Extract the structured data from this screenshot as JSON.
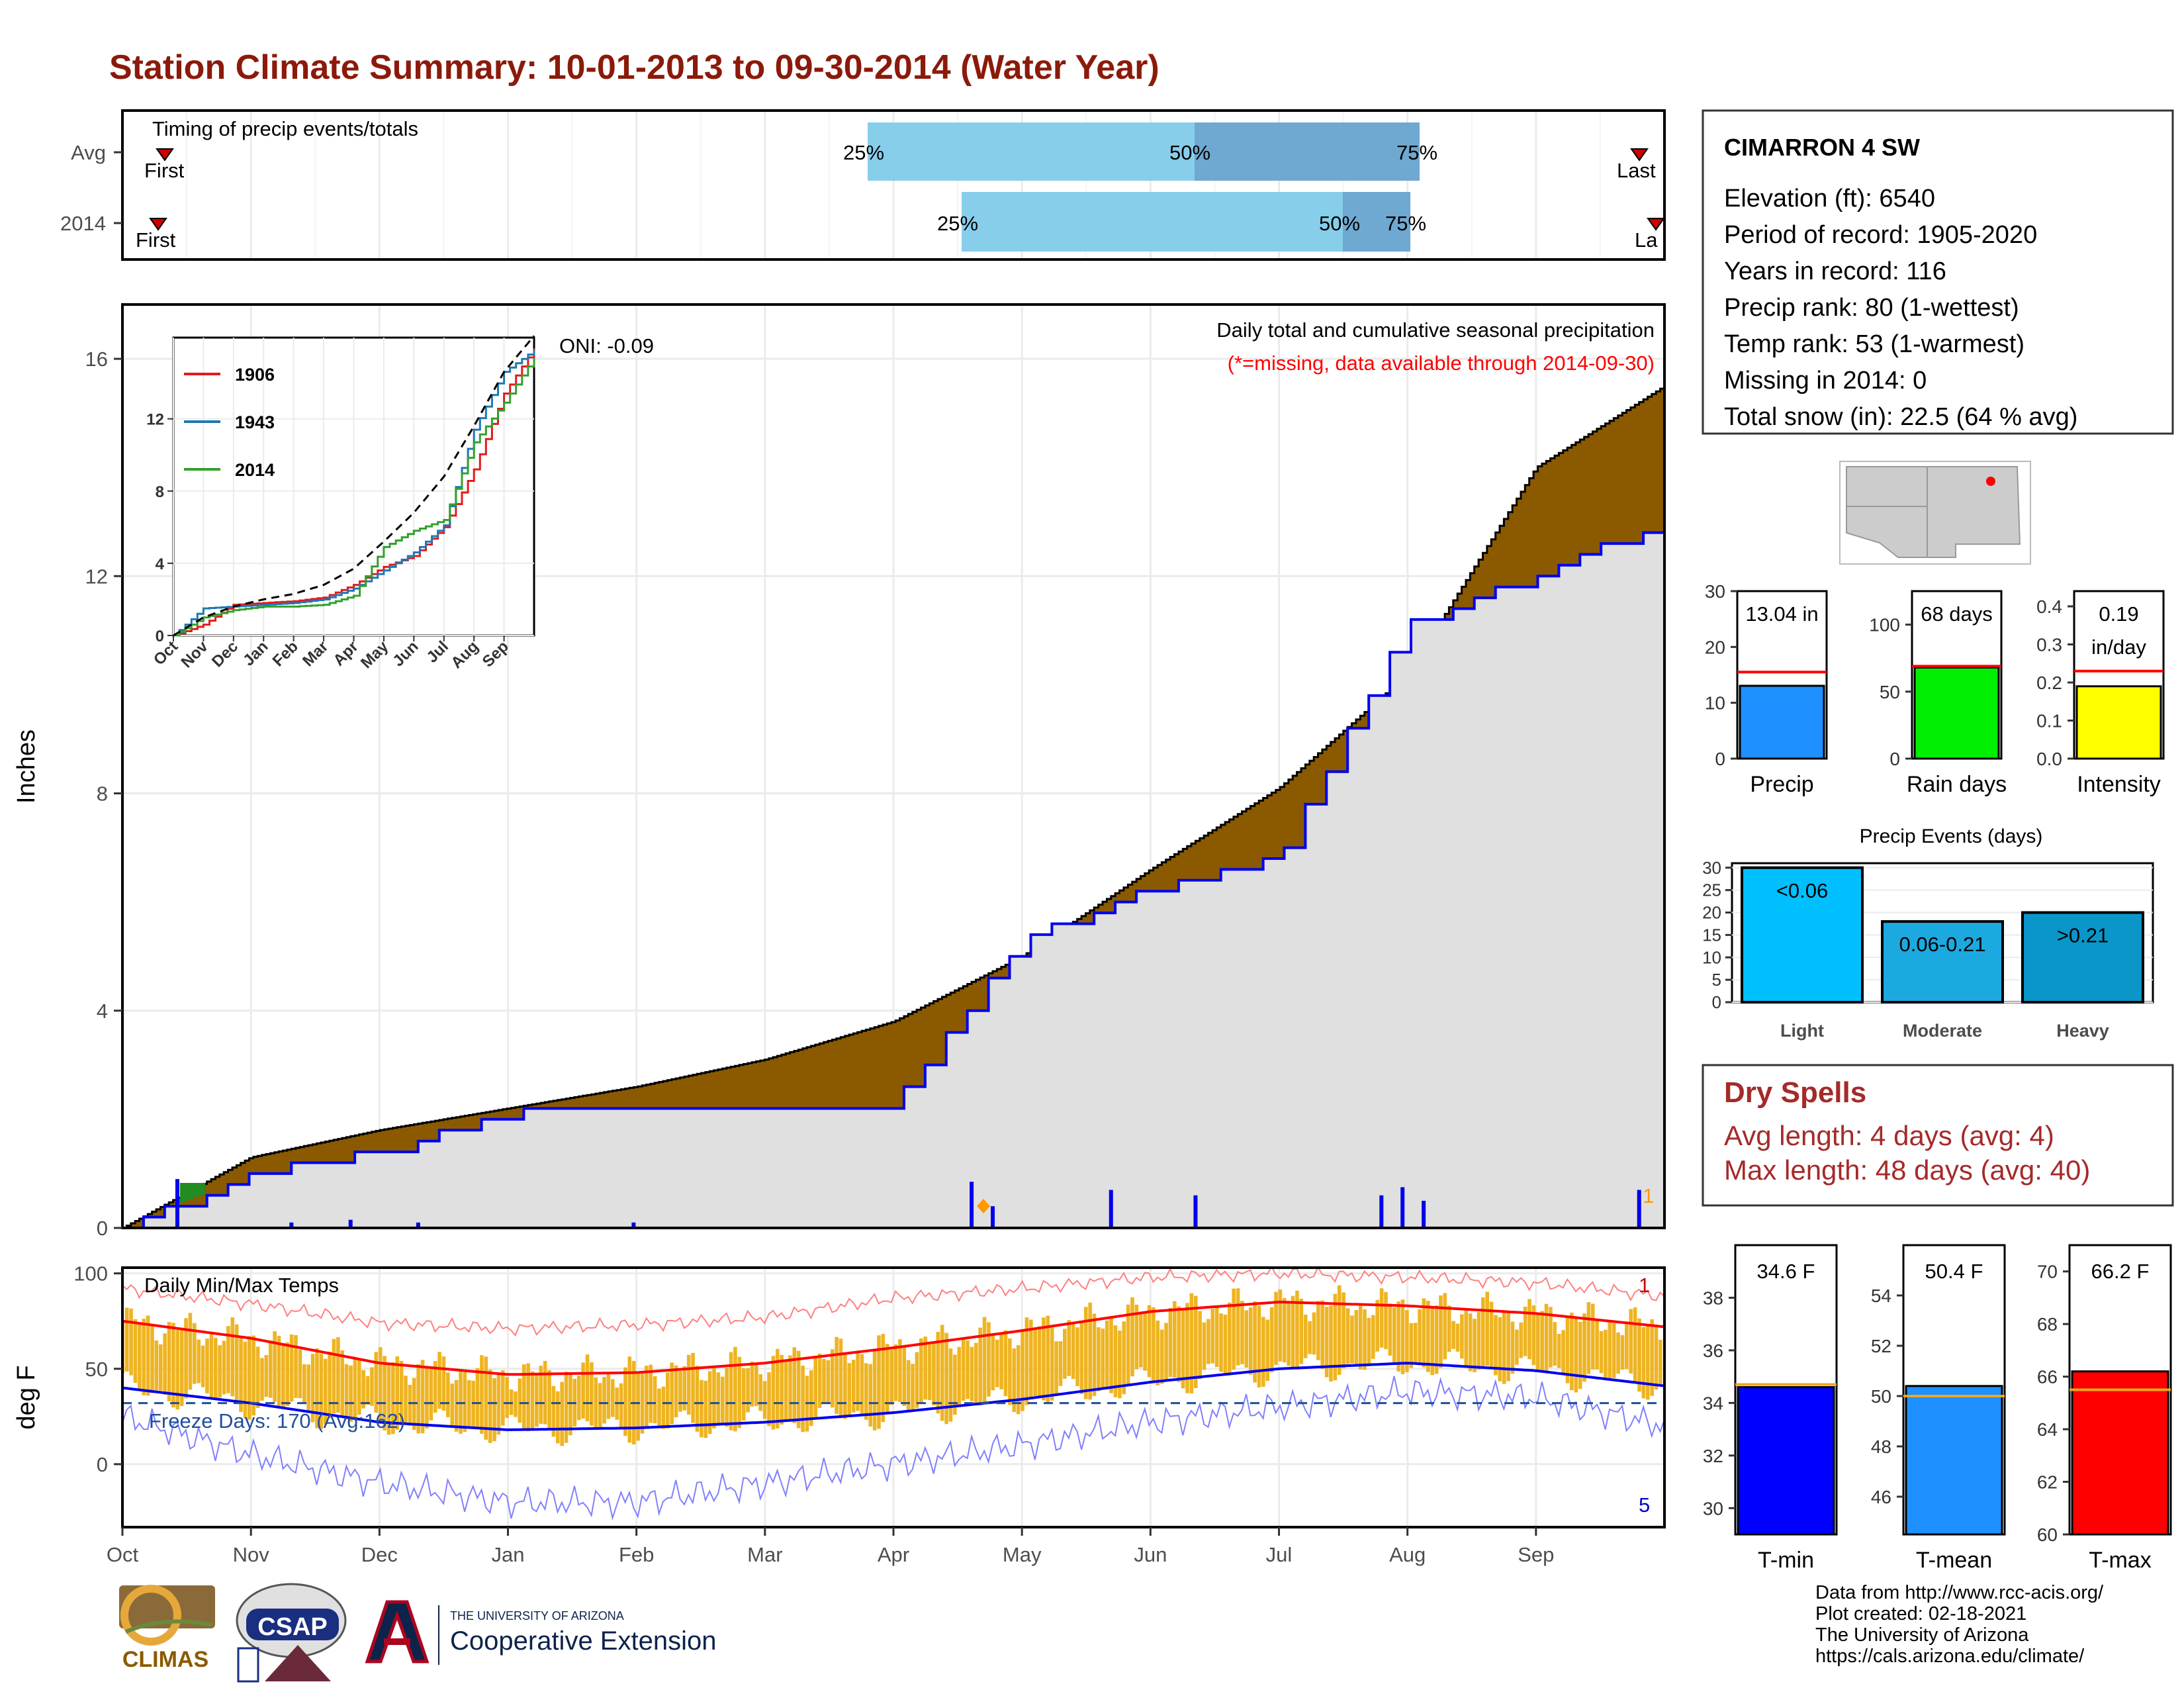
{
  "title": "Station Climate Summary: 10-01-2013 to 09-30-2014 (Water Year)",
  "timing": {
    "label": "Timing of precip events/totals",
    "rows": [
      {
        "name": "Avg",
        "first_label": "First",
        "last_label": "Last",
        "p25": "25%",
        "p50": "50%",
        "p75": "75%"
      },
      {
        "name": "2014",
        "first_label": "First",
        "last_label": "La",
        "p25": "25%",
        "p50": "50%",
        "p75": "75%"
      }
    ]
  },
  "main_panel": {
    "ylabel": "Inches",
    "yticks": [
      "0",
      "4",
      "8",
      "12",
      "16"
    ],
    "note1": "Daily total and cumulative seasonal precipitation",
    "note2": "(*=missing, data available through 2014-09-30)",
    "oni": "ONI: -0.09",
    "count_label": "1"
  },
  "inset": {
    "yticks": [
      "0",
      "4",
      "8",
      "12"
    ],
    "xticks": [
      "Oct",
      "Nov",
      "Dec",
      "Jan",
      "Feb",
      "Mar",
      "Apr",
      "May",
      "Jun",
      "Jul",
      "Aug",
      "Sep"
    ],
    "legend": [
      "1906",
      "1943",
      "2014"
    ]
  },
  "temp_panel": {
    "ylabel": "deg F",
    "label": "Daily Min/Max Temps",
    "freeze": "Freeze Days: 170 (Avg:162)",
    "yticks": [
      "0",
      "50",
      "100"
    ],
    "count_top": "1",
    "count_bottom": "5"
  },
  "months": [
    "Oct",
    "Nov",
    "Dec",
    "Jan",
    "Feb",
    "Mar",
    "Apr",
    "May",
    "Jun",
    "Jul",
    "Aug",
    "Sep"
  ],
  "station": {
    "name": "CIMARRON 4 SW",
    "lines": [
      "Elevation (ft): 6540",
      "Period of record: 1905-2020",
      "Years in record: 116",
      "Precip rank: 80 (1-wettest)",
      "Temp rank: 53 (1-warmest)",
      "Missing in 2014: 0",
      "Total snow (in): 22.5 (64 % avg)"
    ]
  },
  "mini_bars": [
    {
      "label": "Precip",
      "value_text": "13.04 in",
      "value": 13.04,
      "avg": 15.5,
      "ymax": 30,
      "ticks": [
        "0",
        "10",
        "20",
        "30"
      ],
      "color": "#1e90ff"
    },
    {
      "label": "Rain days",
      "value_text": "68 days",
      "value": 68,
      "avg": 69,
      "ymax": 125,
      "ticks": [
        "0",
        "50",
        "100"
      ],
      "color": "#00ee00"
    },
    {
      "label": "Intensity",
      "value_text": "0.19 in/day",
      "value": 0.19,
      "avg": 0.23,
      "ymax": 0.44,
      "ticks": [
        "0.0",
        "0.1",
        "0.2",
        "0.3",
        "0.4"
      ],
      "color": "#ffff00"
    }
  ],
  "precip_events": {
    "title": "Precip Events (days)",
    "ticks": [
      "0",
      "5",
      "10",
      "15",
      "20",
      "25",
      "30"
    ],
    "categories": [
      "Light",
      "Moderate",
      "Heavy"
    ],
    "labels": [
      "<0.06",
      "0.06-0.21",
      ">0.21"
    ],
    "values": [
      30,
      18,
      20
    ],
    "colors": [
      "#00bfff",
      "#1ca9e0",
      "#0a96c8"
    ]
  },
  "dry_spells": {
    "title": "Dry Spells",
    "avg": "Avg length: 4 days (avg: 4)",
    "max": "Max length: 48 days (avg: 40)"
  },
  "temp_bars": [
    {
      "label": "T-min",
      "value_text": "34.6 F",
      "value": 34.6,
      "avg": 34.7,
      "ymin": 29,
      "ymax": 40,
      "ticks": [
        "30",
        "32",
        "34",
        "36",
        "38"
      ],
      "color": "#0000ff"
    },
    {
      "label": "T-mean",
      "value_text": "50.4 F",
      "value": 50.4,
      "avg": 50.0,
      "ymin": 44.5,
      "ymax": 56,
      "ticks": [
        "46",
        "48",
        "50",
        "52",
        "54"
      ],
      "color": "#1e90ff"
    },
    {
      "label": "T-max",
      "value_text": "66.2 F",
      "value": 66.2,
      "avg": 65.5,
      "ymin": 60,
      "ymax": 71,
      "ticks": [
        "60",
        "62",
        "64",
        "66",
        "68",
        "70"
      ],
      "color": "#ff0000"
    }
  ],
  "footer": [
    "Data from http://www.rcc-acis.org/",
    "Plot created: 02-18-2021",
    "The University of Arizona",
    "https://cals.arizona.edu/climate/"
  ],
  "logos": {
    "climas": "CLIMAS",
    "csap": "CSAP",
    "ua_small": "THE UNIVERSITY OF ARIZONA",
    "ua_big": "Cooperative Extension"
  },
  "chart_data": [
    {
      "type": "area",
      "name": "cumulative-precip",
      "x_unit": "month",
      "x": [
        "Oct",
        "Nov",
        "Dec",
        "Jan",
        "Feb",
        "Mar",
        "Apr",
        "May",
        "Jun",
        "Jul",
        "Aug",
        "Sep",
        "Sep-end"
      ],
      "series": [
        {
          "name": "Avg cumulative",
          "values": [
            0,
            1.3,
            1.8,
            2.2,
            2.6,
            3.1,
            3.8,
            5.0,
            6.6,
            8.1,
            10.2,
            14.0,
            15.5
          ]
        },
        {
          "name": "2014 cumulative",
          "values": [
            0,
            1.0,
            1.4,
            2.1,
            2.2,
            2.2,
            2.3,
            5.3,
            6.2,
            6.9,
            11.1,
            12.0,
            13.04
          ]
        }
      ],
      "ylim": [
        0,
        17
      ],
      "ylabel": "Inches",
      "daily_precip": [
        {
          "date": "2013-10-14",
          "value": 0.9
        },
        {
          "date": "2013-11-10",
          "value": 0.1
        },
        {
          "date": "2013-11-24",
          "value": 0.15
        },
        {
          "date": "2013-12-10",
          "value": 0.1
        },
        {
          "date": "2014-01-30",
          "value": 0.1
        },
        {
          "date": "2014-04-20",
          "value": 0.85
        },
        {
          "date": "2014-04-25",
          "value": 0.4
        },
        {
          "date": "2014-05-23",
          "value": 0.7
        },
        {
          "date": "2014-06-12",
          "value": 0.6
        },
        {
          "date": "2014-07-26",
          "value": 0.6
        },
        {
          "date": "2014-07-31",
          "value": 0.75
        },
        {
          "date": "2014-08-05",
          "value": 0.5
        },
        {
          "date": "2014-09-25",
          "value": 0.7
        }
      ]
    },
    {
      "type": "line",
      "name": "inset-cumulative-years",
      "categories": [
        "Oct",
        "Nov",
        "Dec",
        "Jan",
        "Feb",
        "Mar",
        "Apr",
        "May",
        "Jun",
        "Jul",
        "Aug",
        "Sep",
        "Sep-end"
      ],
      "series": [
        {
          "name": "1906",
          "values": [
            0,
            0.6,
            1.7,
            1.8,
            1.9,
            2.1,
            2.8,
            3.8,
            4.4,
            6.0,
            9.2,
            13.4,
            15.9
          ]
        },
        {
          "name": "1943",
          "values": [
            0,
            1.5,
            1.6,
            1.7,
            1.8,
            2.0,
            2.6,
            3.6,
            4.6,
            6.1,
            11.4,
            14.6,
            15.8
          ]
        },
        {
          "name": "2014",
          "values": [
            0,
            1.0,
            1.4,
            1.6,
            1.6,
            1.7,
            2.2,
            4.9,
            5.8,
            6.4,
            10.7,
            12.9,
            15.4
          ]
        },
        {
          "name": "avg",
          "values": [
            0,
            1.0,
            1.6,
            2.0,
            2.3,
            2.8,
            3.7,
            5.2,
            6.8,
            8.8,
            11.6,
            14.6,
            16.6
          ]
        }
      ],
      "ylim": [
        0,
        16.5
      ]
    },
    {
      "type": "line",
      "name": "daily-temps",
      "categories": [
        "Oct",
        "Nov",
        "Dec",
        "Jan",
        "Feb",
        "Mar",
        "Apr",
        "May",
        "Jun",
        "Jul",
        "Aug",
        "Sep",
        "Sep-end"
      ],
      "series": [
        {
          "name": "avg max",
          "values": [
            75,
            66,
            53,
            47,
            48,
            53,
            61,
            70,
            80,
            85,
            83,
            79,
            72
          ]
        },
        {
          "name": "avg min",
          "values": [
            40,
            32,
            22,
            18,
            19,
            22,
            27,
            34,
            43,
            50,
            53,
            49,
            41
          ]
        },
        {
          "name": "record max",
          "values": [
            92,
            84,
            74,
            71,
            73,
            77,
            87,
            92,
            98,
            100,
            98,
            95,
            88
          ]
        },
        {
          "name": "record min",
          "values": [
            25,
            5,
            -10,
            -20,
            -20,
            -10,
            0,
            10,
            22,
            30,
            38,
            35,
            20
          ]
        }
      ],
      "ylim": [
        -33,
        103
      ],
      "ylabel": "deg F",
      "freeze_line": 32
    }
  ]
}
